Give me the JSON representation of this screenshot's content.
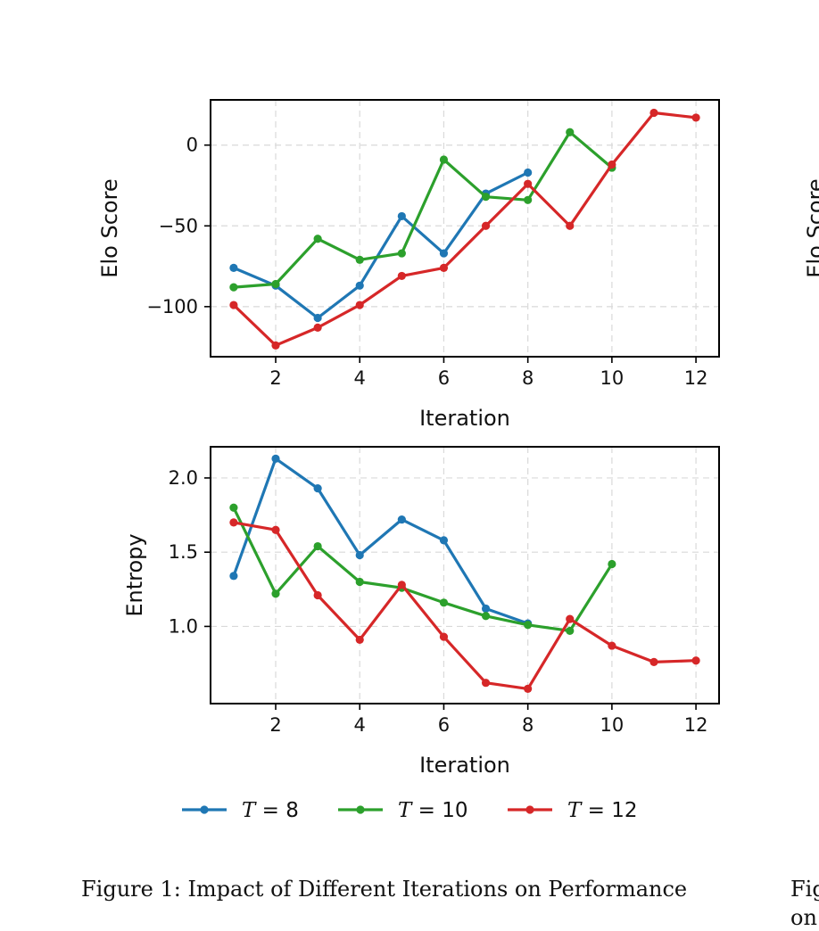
{
  "chart_data": [
    {
      "type": "line",
      "xlabel": "Iteration",
      "ylabel": "Elo Score",
      "xticks": [
        2,
        4,
        6,
        8,
        10,
        12
      ],
      "yticks": [
        0,
        -50,
        -100
      ],
      "ytick_labels": [
        "0",
        "−50",
        "−100"
      ],
      "xlim": [
        0.45,
        12.55
      ],
      "ylim": [
        -131,
        28
      ],
      "grid": true,
      "series": [
        {
          "name": "T = 8",
          "color": "#1f77b4",
          "x": [
            1,
            2,
            3,
            4,
            5,
            6,
            7,
            8
          ],
          "y": [
            -76,
            -87,
            -107,
            -87,
            -44,
            -67,
            -30,
            -17
          ]
        },
        {
          "name": "T = 10",
          "color": "#2ca02c",
          "x": [
            1,
            2,
            3,
            4,
            5,
            6,
            7,
            8,
            9,
            10
          ],
          "y": [
            -88,
            -86,
            -58,
            -71,
            -67,
            -9,
            -32,
            -34,
            8,
            -14
          ]
        },
        {
          "name": "T = 12",
          "color": "#d62728",
          "x": [
            1,
            2,
            3,
            4,
            5,
            6,
            7,
            8,
            9,
            10,
            11,
            12
          ],
          "y": [
            -99,
            -124,
            -113,
            -99,
            -81,
            -76,
            -50,
            -24,
            -50,
            -12,
            20,
            17
          ]
        }
      ]
    },
    {
      "type": "line",
      "xlabel": "Iteration",
      "ylabel": "Entropy",
      "xticks": [
        2,
        4,
        6,
        8,
        10,
        12
      ],
      "yticks": [
        1.0,
        1.5,
        2.0
      ],
      "ytick_labels": [
        "1.0",
        "1.5",
        "2.0"
      ],
      "xlim": [
        0.45,
        12.55
      ],
      "ylim": [
        0.48,
        2.21
      ],
      "grid": true,
      "series": [
        {
          "name": "T = 8",
          "color": "#1f77b4",
          "x": [
            1,
            2,
            3,
            4,
            5,
            6,
            7,
            8
          ],
          "y": [
            1.34,
            2.13,
            1.93,
            1.48,
            1.72,
            1.58,
            1.12,
            1.02
          ]
        },
        {
          "name": "T = 10",
          "color": "#2ca02c",
          "x": [
            1,
            2,
            3,
            4,
            5,
            6,
            7,
            8,
            9,
            10
          ],
          "y": [
            1.8,
            1.22,
            1.54,
            1.3,
            1.26,
            1.16,
            1.07,
            1.01,
            0.97,
            1.42
          ]
        },
        {
          "name": "T = 12",
          "color": "#d62728",
          "x": [
            1,
            2,
            3,
            4,
            5,
            6,
            7,
            8,
            9,
            10,
            11,
            12
          ],
          "y": [
            1.7,
            1.65,
            1.21,
            0.91,
            1.28,
            0.93,
            0.62,
            0.58,
            1.05,
            0.87,
            0.76,
            0.77
          ]
        }
      ]
    }
  ],
  "legend": {
    "placement": "bottom",
    "entries": [
      {
        "var": "T",
        "eq": " = 8",
        "color": "#1f77b4"
      },
      {
        "var": "T",
        "eq": " = 10",
        "color": "#2ca02c"
      },
      {
        "var": "T",
        "eq": " = 12",
        "color": "#d62728"
      }
    ]
  },
  "captions": {
    "figure1": "Figure 1: Impact of Different Iterations on Performance",
    "figure2_fragment_line1": "Fig",
    "figure2_fragment_line2": "on",
    "right_panel_ylabel_fragment": "Elo Score"
  }
}
